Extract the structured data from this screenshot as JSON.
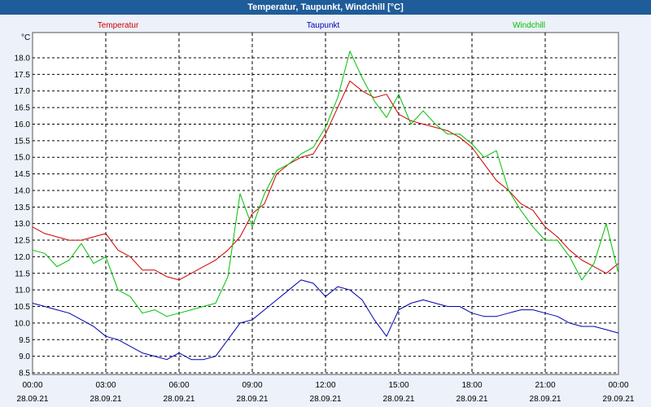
{
  "window": {
    "title": "Temperatur, Taupunkt, Windchill [°C]"
  },
  "chart_data": {
    "type": "line",
    "title": "Temperatur, Taupunkt, Windchill [°C]",
    "ylabel": "°C",
    "ylim": [
      8.5,
      18.5
    ],
    "yticks": [
      "18.0",
      "17.5",
      "17.0",
      "16.5",
      "16.0",
      "15.5",
      "15.0",
      "14.5",
      "14.0",
      "13.5",
      "13.0",
      "12.5",
      "12.0",
      "11.5",
      "11.0",
      "10.5",
      "10.0",
      "9.5",
      "9.0",
      "8.5"
    ],
    "xlim": [
      0,
      24
    ],
    "xticks": [
      {
        "time": "00:00",
        "date": "28.09.21"
      },
      {
        "time": "03:00",
        "date": "28.09.21"
      },
      {
        "time": "06:00",
        "date": "28.09.21"
      },
      {
        "time": "09:00",
        "date": "28.09.21"
      },
      {
        "time": "12:00",
        "date": "28.09.21"
      },
      {
        "time": "15:00",
        "date": "28.09.21"
      },
      {
        "time": "18:00",
        "date": "28.09.21"
      },
      {
        "time": "21:00",
        "date": "28.09.21"
      },
      {
        "time": "00:00",
        "date": "29.09.21"
      }
    ],
    "grid": true,
    "series": [
      {
        "name": "Temperatur",
        "color": "#D00000",
        "x": [
          0,
          0.5,
          1,
          1.5,
          2,
          2.5,
          3,
          3.5,
          4,
          4.5,
          5,
          5.5,
          6,
          6.5,
          7,
          7.5,
          8,
          8.5,
          9,
          9.5,
          10,
          10.5,
          11,
          11.5,
          12,
          12.5,
          13,
          13.5,
          14,
          14.5,
          15,
          15.5,
          16,
          16.5,
          17,
          17.5,
          18,
          18.5,
          19,
          19.5,
          20,
          20.5,
          21,
          21.5,
          22,
          22.5,
          23,
          23.5,
          24
        ],
        "values": [
          12.9,
          12.7,
          12.6,
          12.5,
          12.5,
          12.6,
          12.7,
          12.2,
          12.0,
          11.6,
          11.6,
          11.4,
          11.3,
          11.5,
          11.7,
          11.9,
          12.2,
          12.6,
          13.3,
          13.6,
          14.5,
          14.8,
          15.0,
          15.1,
          15.7,
          16.5,
          17.3,
          17.0,
          16.8,
          16.9,
          16.3,
          16.1,
          16.0,
          15.9,
          15.8,
          15.6,
          15.3,
          14.8,
          14.3,
          14.0,
          13.6,
          13.4,
          12.9,
          12.6,
          12.2,
          11.9,
          11.7,
          11.5,
          11.8
        ]
      },
      {
        "name": "Taupunkt",
        "color": "#0000B0",
        "x": [
          0,
          0.5,
          1,
          1.5,
          2,
          2.5,
          3,
          3.5,
          4,
          4.5,
          5,
          5.5,
          6,
          6.5,
          7,
          7.5,
          8,
          8.5,
          9,
          9.5,
          10,
          10.5,
          11,
          11.5,
          12,
          12.5,
          13,
          13.5,
          14,
          14.5,
          15,
          15.5,
          16,
          16.5,
          17,
          17.5,
          18,
          18.5,
          19,
          19.5,
          20,
          20.5,
          21,
          21.5,
          22,
          22.5,
          23,
          23.5,
          24
        ],
        "values": [
          10.6,
          10.5,
          10.4,
          10.3,
          10.1,
          9.9,
          9.6,
          9.5,
          9.3,
          9.1,
          9.0,
          8.9,
          9.1,
          8.9,
          8.9,
          9.0,
          9.5,
          10.0,
          10.1,
          10.4,
          10.7,
          11.0,
          11.3,
          11.2,
          10.8,
          11.1,
          11.0,
          10.7,
          10.1,
          9.6,
          10.4,
          10.6,
          10.7,
          10.6,
          10.5,
          10.5,
          10.3,
          10.2,
          10.2,
          10.3,
          10.4,
          10.4,
          10.3,
          10.2,
          10.0,
          9.9,
          9.9,
          9.8,
          9.7
        ]
      },
      {
        "name": "Windchill",
        "color": "#00C000",
        "x": [
          0,
          0.5,
          1,
          1.5,
          2,
          2.5,
          3,
          3.5,
          4,
          4.5,
          5,
          5.5,
          6,
          6.5,
          7,
          7.5,
          8,
          8.5,
          9,
          9.5,
          10,
          10.5,
          11,
          11.5,
          12,
          12.5,
          13,
          13.5,
          14,
          14.5,
          15,
          15.5,
          16,
          16.5,
          17,
          17.5,
          18,
          18.5,
          19,
          19.5,
          20,
          20.5,
          21,
          21.5,
          22,
          22.5,
          23,
          23.5,
          24
        ],
        "values": [
          12.2,
          12.1,
          11.7,
          11.9,
          12.4,
          11.8,
          12.0,
          11.0,
          10.8,
          10.3,
          10.4,
          10.2,
          10.3,
          10.4,
          10.5,
          10.6,
          11.4,
          13.9,
          12.9,
          13.9,
          14.6,
          14.8,
          15.1,
          15.3,
          15.9,
          16.8,
          18.2,
          17.4,
          16.7,
          16.2,
          16.9,
          16.0,
          16.4,
          16.0,
          15.7,
          15.7,
          15.4,
          15.0,
          15.2,
          14.0,
          13.4,
          12.9,
          12.5,
          12.5,
          12.0,
          11.3,
          11.8,
          13.0,
          11.5
        ]
      }
    ]
  }
}
